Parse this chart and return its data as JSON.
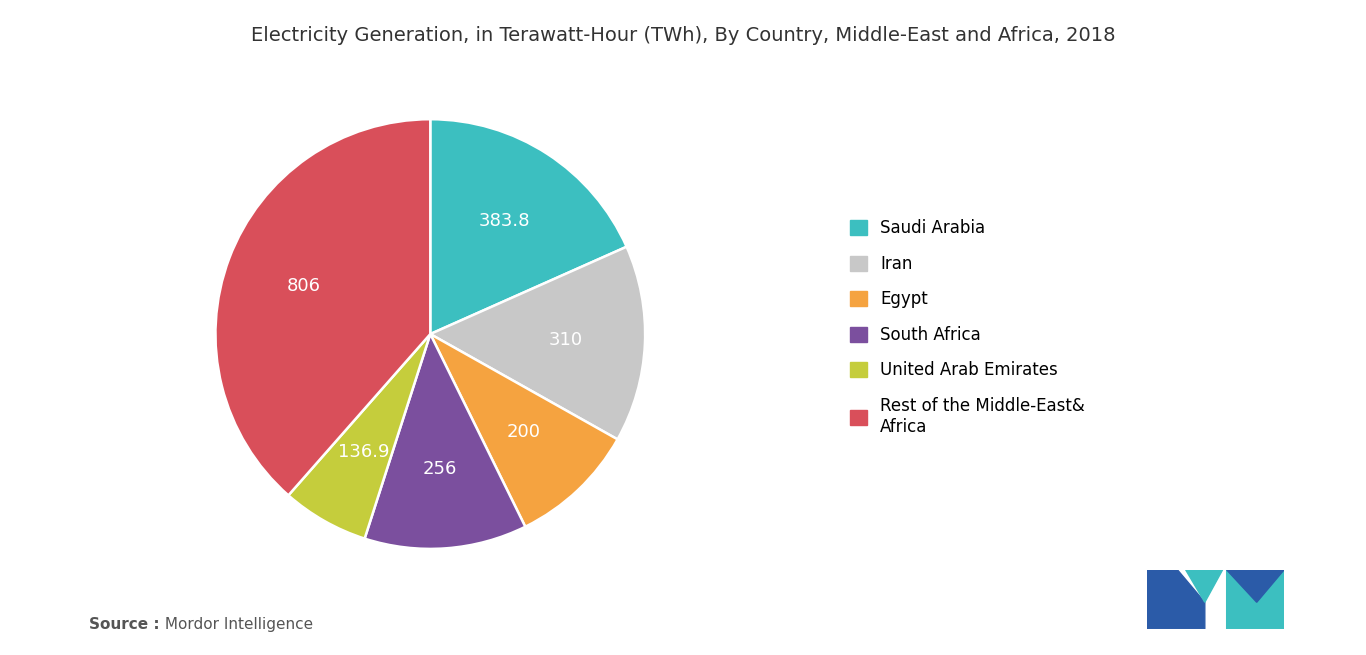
{
  "title": "Electricity Generation, in Terawatt-Hour (TWh), By Country, Middle-East and Africa, 2018",
  "labels": [
    "Saudi Arabia",
    "Iran",
    "Egypt",
    "South Africa",
    "United Arab Emirates",
    "Rest of the Middle-East&\nAfrica"
  ],
  "legend_labels": [
    "Saudi Arabia",
    "Iran",
    "Egypt",
    "South Africa",
    "United Arab Emirates",
    "Rest of the Middle-East&\nAfrica"
  ],
  "values": [
    383.8,
    310,
    200,
    256,
    136.9,
    806
  ],
  "colors": [
    "#3CBFC0",
    "#C8C8C8",
    "#F5A340",
    "#7B4F9E",
    "#C5CD3C",
    "#D94F5A"
  ],
  "label_values": [
    "383.8",
    "310",
    "200",
    "256",
    "136.9",
    "806"
  ],
  "background_color": "#FFFFFF",
  "source_bold": "Source :",
  "source_normal": " Mordor Intelligence",
  "title_fontsize": 14,
  "label_fontsize": 13,
  "legend_fontsize": 12,
  "source_fontsize": 11,
  "logo_left_color": "#2B5BA8",
  "logo_right_color": "#3CBFC0"
}
